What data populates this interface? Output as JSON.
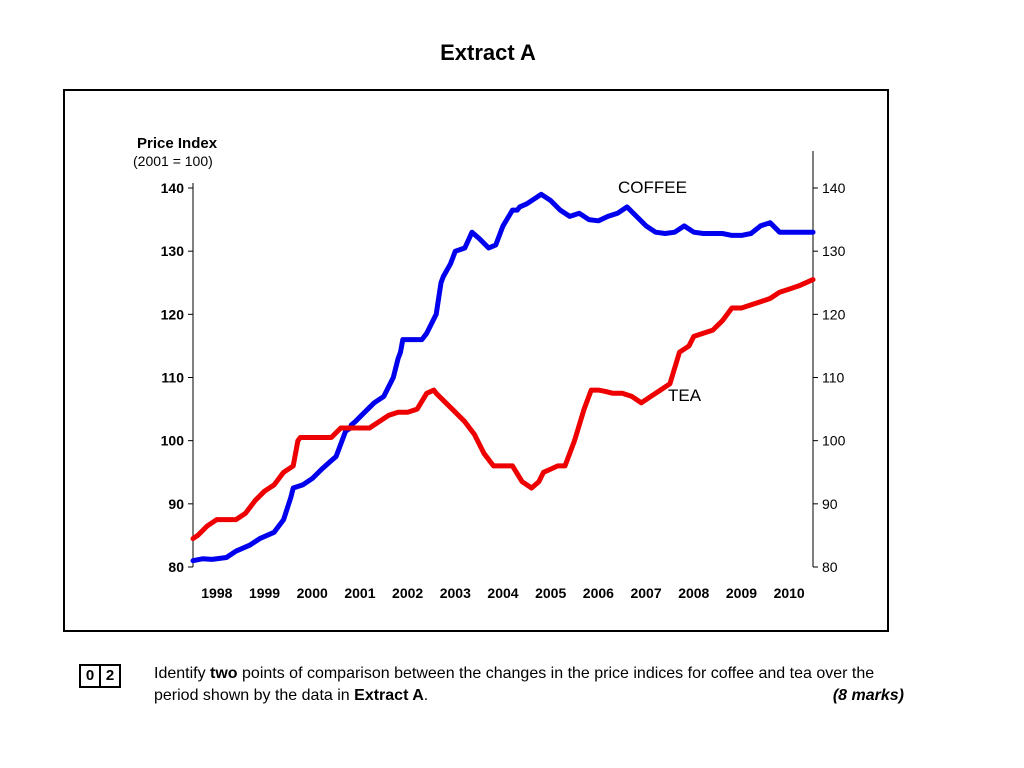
{
  "page": {
    "title": "Extract A"
  },
  "chart_data": {
    "type": "line",
    "ylabel": "Price Index",
    "ylabel_sub": "(2001 = 100)",
    "ylim": [
      80,
      140
    ],
    "yticks": [
      80,
      90,
      100,
      110,
      120,
      130,
      140
    ],
    "xlim": [
      1997.5,
      2010.5
    ],
    "categories": [
      "1998",
      "1999",
      "2000",
      "2001",
      "2002",
      "2003",
      "2004",
      "2005",
      "2006",
      "2007",
      "2008",
      "2009",
      "2010"
    ],
    "right_axis": true,
    "grid": false,
    "series": [
      {
        "name": "COFFEE",
        "color": "#0000ee",
        "x": [
          1997.5,
          1997.7,
          1997.9,
          1998.2,
          1998.4,
          1998.7,
          1998.9,
          1999.2,
          1999.4,
          1999.55,
          1999.6,
          1999.8,
          2000.0,
          2000.2,
          2000.35,
          2000.5,
          2000.7,
          2000.8,
          2000.82,
          2000.9,
          2001.1,
          2001.3,
          2001.5,
          2001.7,
          2001.8,
          2001.85,
          2001.9,
          2002.1,
          2002.3,
          2002.4,
          2002.6,
          2002.7,
          2002.75,
          2002.9,
          2003.0,
          2003.2,
          2003.35,
          2003.5,
          2003.7,
          2003.85,
          2004.0,
          2004.2,
          2004.3,
          2004.35,
          2004.5,
          2004.8,
          2005.0,
          2005.2,
          2005.4,
          2005.6,
          2005.8,
          2006.0,
          2006.2,
          2006.4,
          2006.6,
          2006.8,
          2007.0,
          2007.2,
          2007.4,
          2007.6,
          2007.8,
          2008.0,
          2008.2,
          2008.4,
          2008.6,
          2008.8,
          2009.0,
          2009.2,
          2009.4,
          2009.6,
          2009.8,
          2010.0,
          2010.5
        ],
        "values": [
          81,
          81.3,
          81.2,
          81.5,
          82.5,
          83.5,
          84.5,
          85.5,
          87.5,
          91,
          92.5,
          93,
          94,
          95.5,
          96.5,
          97.5,
          101.5,
          102,
          102.5,
          103,
          104.5,
          106,
          107,
          110,
          113,
          114,
          116,
          116,
          116,
          117,
          120,
          125,
          126,
          128,
          130,
          130.5,
          133,
          132,
          130.5,
          131,
          134,
          136.5,
          136.5,
          137,
          137.5,
          139,
          138,
          136.5,
          135.5,
          136,
          135,
          134.8,
          135.5,
          136,
          137,
          135.5,
          134,
          133,
          132.8,
          133,
          134,
          133,
          132.8,
          132.8,
          132.8,
          132.5,
          132.5,
          132.8,
          134,
          134.5,
          133,
          133,
          133
        ]
      },
      {
        "name": "TEA",
        "color": "#ee0000",
        "x": [
          1997.5,
          1997.6,
          1997.8,
          1998.0,
          1998.2,
          1998.4,
          1998.6,
          1998.8,
          1999.0,
          1999.2,
          1999.4,
          1999.6,
          1999.7,
          1999.75,
          2000.0,
          2000.2,
          2000.4,
          2000.6,
          2000.8,
          2001.0,
          2001.2,
          2001.4,
          2001.6,
          2001.8,
          2002.0,
          2002.2,
          2002.4,
          2002.55,
          2002.6,
          2002.8,
          2003.0,
          2003.2,
          2003.4,
          2003.6,
          2003.8,
          2004.0,
          2004.2,
          2004.4,
          2004.6,
          2004.75,
          2004.85,
          2005.0,
          2005.15,
          2005.3,
          2005.5,
          2005.7,
          2005.85,
          2006.0,
          2006.15,
          2006.3,
          2006.5,
          2006.7,
          2006.9,
          2007.1,
          2007.3,
          2007.5,
          2007.7,
          2007.9,
          2008.0,
          2008.2,
          2008.4,
          2008.6,
          2008.8,
          2009.0,
          2009.2,
          2009.4,
          2009.6,
          2009.8,
          2010.0,
          2010.2,
          2010.5
        ],
        "values": [
          84.5,
          85,
          86.5,
          87.5,
          87.5,
          87.5,
          88.5,
          90.5,
          92,
          93,
          95,
          96,
          100,
          100.5,
          100.5,
          100.5,
          100.5,
          102,
          102,
          102,
          102,
          103,
          104,
          104.5,
          104.5,
          105,
          107.5,
          108,
          107.5,
          106,
          104.5,
          103,
          101,
          98,
          96,
          96,
          96,
          93.5,
          92.5,
          93.5,
          95,
          95.5,
          96,
          96,
          100,
          105,
          108,
          108,
          107.8,
          107.5,
          107.5,
          107,
          106,
          107,
          108,
          109,
          114,
          115,
          116.5,
          117,
          117.5,
          119,
          121,
          121,
          121.5,
          122,
          122.5,
          123.5,
          124,
          124.5,
          125.5
        ]
      }
    ]
  },
  "question": {
    "number_digits": [
      "0",
      "2"
    ],
    "text_before": "Identify ",
    "text_bold": "two",
    "text_middle": " points of comparison between the changes in the price indices for coffee and tea over the period shown by the data in ",
    "text_bold2": "Extract A",
    "text_end": ".",
    "marks": "(8 marks)"
  }
}
